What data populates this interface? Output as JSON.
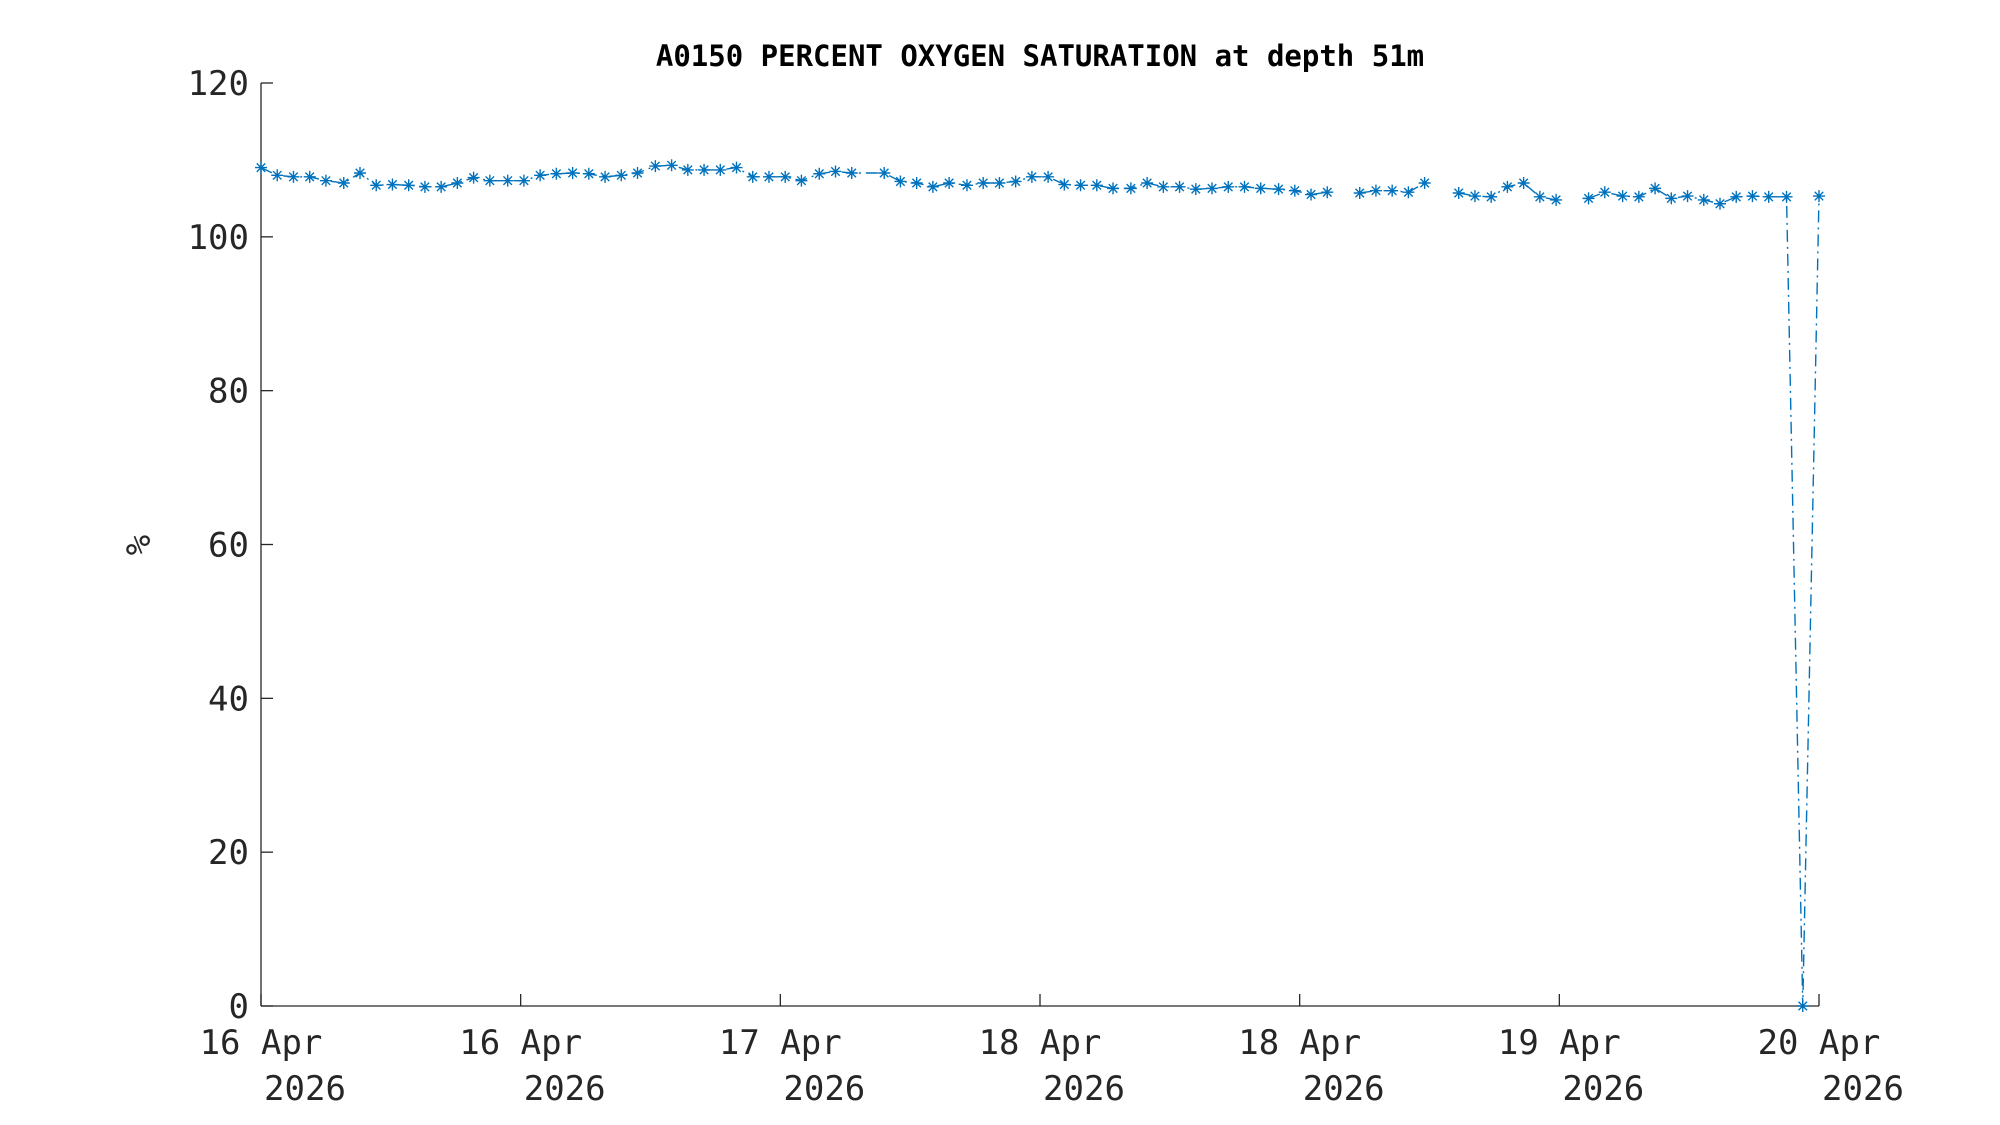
{
  "chart_data": {
    "type": "line",
    "title": "A0150 PERCENT OXYGEN SATURATION at depth 51m",
    "ylabel": "%",
    "xlim": [
      0,
      96
    ],
    "xticks": [
      {
        "value": 0,
        "label": [
          "16 Apr",
          "2026"
        ]
      },
      {
        "value": 16,
        "label": [
          "16 Apr",
          "2026"
        ]
      },
      {
        "value": 32,
        "label": [
          "17 Apr",
          "2026"
        ]
      },
      {
        "value": 48,
        "label": [
          "18 Apr",
          "2026"
        ]
      },
      {
        "value": 64,
        "label": [
          "18 Apr",
          "2026"
        ]
      },
      {
        "value": 80,
        "label": [
          "19 Apr",
          "2026"
        ]
      },
      {
        "value": 96,
        "label": [
          "20 Apr",
          "2026"
        ]
      }
    ],
    "ylim": [
      0,
      120
    ],
    "yticks": [
      0,
      20,
      40,
      60,
      80,
      100,
      120
    ],
    "grid": false,
    "series": [
      {
        "color": "#0072bd",
        "line_style": "dashdot",
        "marker": "asterisk",
        "x": [
          0,
          1.0,
          2.0,
          3.0,
          4.0,
          5.1,
          6.1,
          7.1,
          8.1,
          9.1,
          10.1,
          11.1,
          12.1,
          13.1,
          14.1,
          15.2,
          16.2,
          17.2,
          18.2,
          19.2,
          20.2,
          21.2,
          22.2,
          23.2,
          24.3,
          25.3,
          26.3,
          27.3,
          28.3,
          29.3,
          30.3,
          31.3,
          32.3,
          33.3,
          34.4,
          35.4,
          36.4,
          38.4,
          39.4,
          40.4,
          41.4,
          42.4,
          43.5,
          44.5,
          45.5,
          46.5,
          47.5,
          48.5,
          49.5,
          50.5,
          51.5,
          52.5,
          53.6,
          54.6,
          55.6,
          56.6,
          57.6,
          58.6,
          59.6,
          60.6,
          61.6,
          62.7,
          63.7,
          64.7,
          65.7,
          66.7,
          67.7,
          68.7,
          69.7,
          70.7,
          71.7,
          72.8,
          73.8,
          74.8,
          75.8,
          76.8,
          77.8,
          78.8,
          79.8,
          80.8,
          81.8,
          82.8,
          83.9,
          84.9,
          85.9,
          86.9,
          87.9,
          88.9,
          89.9,
          90.9,
          91.9,
          92.9,
          94.0,
          95.0,
          96.0
        ],
        "values": [
          109.0,
          108.0,
          107.8,
          107.8,
          107.3,
          107.0,
          108.3,
          106.7,
          106.8,
          106.7,
          106.5,
          106.5,
          107.0,
          107.7,
          107.3,
          107.3,
          107.3,
          108.0,
          108.2,
          108.3,
          108.2,
          107.8,
          108.0,
          108.3,
          109.2,
          109.3,
          108.7,
          108.7,
          108.7,
          109.0,
          107.8,
          107.8,
          107.8,
          107.3,
          108.2,
          108.5,
          108.3,
          108.3,
          107.2,
          107.0,
          106.5,
          107.0,
          106.7,
          107.0,
          107.0,
          107.2,
          107.8,
          107.8,
          106.8,
          106.7,
          106.7,
          106.3,
          106.3,
          107.0,
          106.5,
          106.5,
          106.2,
          106.3,
          106.5,
          106.5,
          106.3,
          106.2,
          106.0,
          105.5,
          105.8,
          null,
          105.7,
          106.0,
          106.0,
          105.8,
          107.0,
          null,
          105.7,
          105.3,
          105.2,
          106.5,
          107.0,
          105.2,
          104.8,
          null,
          105.0,
          105.8,
          105.3,
          105.2,
          106.3,
          105.0,
          105.3,
          104.8,
          104.3,
          105.2,
          105.3,
          105.2,
          105.2,
          0,
          105.3
        ]
      }
    ]
  }
}
